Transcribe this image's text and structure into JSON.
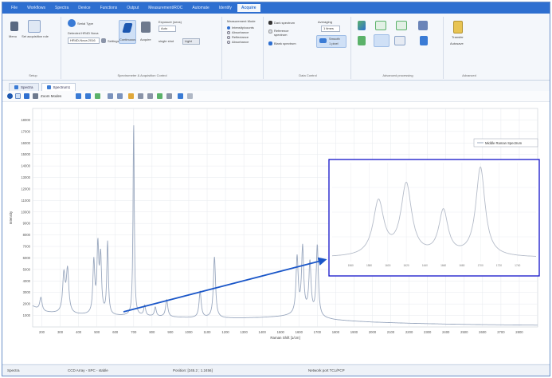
{
  "menubar": {
    "items": [
      "File",
      "Workflows",
      "Spectra",
      "Device",
      "Functions",
      "Output",
      "Measurement/ROC",
      "Automate",
      "Identify",
      "Acquire"
    ],
    "active_index": 9
  },
  "ribbon": {
    "groups": {
      "setup": {
        "title": "Setup",
        "menu_label": "Menu",
        "new_acq_label": "Set acquisition rule"
      },
      "spectrometer": {
        "title": "Spectrometer & Acquisition Control",
        "serial_type_label": "Serial Type",
        "device_label": "Detected HR4D Nova",
        "device_select": "HR4D-Nova 2016",
        "settings_label": "Settings",
        "continuous_label": "Continuous",
        "acquire_label": "Acquire",
        "exposure_label": "Exposure (secs)",
        "exposure_value": "Auto",
        "single_label": "single shot",
        "light_label": "Light"
      },
      "measurement_mode": {
        "title": "Measurement Mode",
        "options": [
          "Intensity/counts",
          "Absorbance",
          "Reflectance",
          "Absorbance"
        ],
        "selected": 0
      },
      "data_control": {
        "title": "Data Control",
        "dark_spectrum_label": "Dark spectrum",
        "reference_label": "Reference spectrum",
        "blank_spectrum_label": "Blank spectrum",
        "averaging_label": "Averaging",
        "averaging_value": "1 times",
        "smooth_label": "Smooth",
        "smooth_value": "1 pixel"
      },
      "processing": {
        "title": "Advanced processing"
      },
      "advanced": {
        "title": "Advanced",
        "transfer_label": "Transfer",
        "autosave_label": "Autosave"
      }
    }
  },
  "doctabs": [
    {
      "label": "Spectra",
      "active": false
    },
    {
      "label": "Spectrum1",
      "active": true
    }
  ],
  "plot_toolbar": {
    "zoom_label": "Zoom Modes"
  },
  "chart_data": {
    "type": "line",
    "legend": "Middle Raman Spectrum",
    "legend_position": "top-right",
    "xlabel": "Raman Shift [1/cm]",
    "ylabel": "Intensity",
    "xlim": [
      150,
      2900
    ],
    "ylim": [
      0,
      19000
    ],
    "grid": true,
    "x_ticks": [
      200,
      300,
      400,
      500,
      600,
      700,
      800,
      900,
      1000,
      1100,
      1200,
      1300,
      1400,
      1500,
      1600,
      1700,
      1800,
      1900,
      2000,
      2100,
      2200,
      2300,
      2400,
      2500,
      2600,
      2700,
      2800
    ],
    "y_ticks": [
      1000,
      2000,
      3000,
      4000,
      5000,
      6000,
      7000,
      8000,
      9000,
      10000,
      11000,
      12000,
      13000,
      14000,
      15000,
      16000,
      17000,
      18000
    ],
    "series": [
      {
        "name": "Middle Raman Spectrum",
        "color": "#9aa8bf",
        "baseline": [
          [
            150,
            1800
          ],
          [
            200,
            1300
          ],
          [
            300,
            1150
          ],
          [
            400,
            1050
          ],
          [
            500,
            1000
          ],
          [
            600,
            950
          ],
          [
            700,
            950
          ],
          [
            800,
            900
          ],
          [
            900,
            850
          ],
          [
            1000,
            800
          ],
          [
            1100,
            780
          ],
          [
            1200,
            760
          ],
          [
            1300,
            780
          ],
          [
            1400,
            820
          ],
          [
            1500,
            900
          ],
          [
            1600,
            1050
          ],
          [
            1650,
            1150
          ],
          [
            1700,
            800
          ],
          [
            1800,
            600
          ],
          [
            1900,
            500
          ],
          [
            2000,
            420
          ],
          [
            2200,
            320
          ],
          [
            2400,
            250
          ],
          [
            2600,
            200
          ],
          [
            2800,
            170
          ],
          [
            2900,
            160
          ]
        ],
        "peaks": [
          {
            "x": 195,
            "height": 1200,
            "width": 8
          },
          {
            "x": 320,
            "height": 3300,
            "width": 8
          },
          {
            "x": 340,
            "height": 3700,
            "width": 8
          },
          {
            "x": 483,
            "height": 4500,
            "width": 6
          },
          {
            "x": 505,
            "height": 5700,
            "width": 6
          },
          {
            "x": 520,
            "height": 4800,
            "width": 6
          },
          {
            "x": 558,
            "height": 6300,
            "width": 5
          },
          {
            "x": 700,
            "height": 16800,
            "width": 4
          },
          {
            "x": 760,
            "height": 900,
            "width": 6
          },
          {
            "x": 818,
            "height": 800,
            "width": 6
          },
          {
            "x": 880,
            "height": 1500,
            "width": 7
          },
          {
            "x": 1062,
            "height": 2300,
            "width": 7
          },
          {
            "x": 1140,
            "height": 5300,
            "width": 7
          },
          {
            "x": 1590,
            "height": 4900,
            "width": 7
          },
          {
            "x": 1620,
            "height": 5700,
            "width": 7
          },
          {
            "x": 1660,
            "height": 4400,
            "width": 7
          },
          {
            "x": 1700,
            "height": 6200,
            "width": 7
          }
        ]
      }
    ]
  },
  "inset": {
    "xlim": [
      1540,
      1760
    ],
    "x_ticks": [
      1560,
      1580,
      1600,
      1620,
      1640,
      1660,
      1680,
      1700,
      1720,
      1740
    ],
    "peaks": [
      {
        "x": 1590,
        "height": 0.55,
        "width": 7
      },
      {
        "x": 1620,
        "height": 0.72,
        "width": 7
      },
      {
        "x": 1660,
        "height": 0.45,
        "width": 6
      },
      {
        "x": 1700,
        "height": 0.9,
        "width": 6
      }
    ]
  },
  "statusbar": {
    "left": "Spectra",
    "device": "CCD Array - SPC - stable",
    "position": "Position: [245.2 ; 1.2456]",
    "network": "Network port TCL/PCP"
  }
}
